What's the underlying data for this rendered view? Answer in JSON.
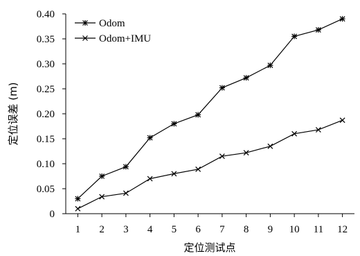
{
  "chart_data": {
    "type": "line",
    "title": "",
    "xlabel": "定位测试点",
    "ylabel": "定位误差 (m)",
    "x": [
      1,
      2,
      3,
      4,
      5,
      6,
      7,
      8,
      9,
      10,
      11,
      12
    ],
    "ylim": [
      0,
      0.4
    ],
    "yticks": [
      "0",
      "0.05",
      "0.10",
      "0.15",
      "0.20",
      "0.25",
      "0.30",
      "0.35",
      "0.40"
    ],
    "grid": false,
    "legend_position": "top-left",
    "series": [
      {
        "name": "Odom",
        "marker": "asterisk",
        "values": [
          0.03,
          0.075,
          0.094,
          0.152,
          0.18,
          0.198,
          0.252,
          0.272,
          0.297,
          0.355,
          0.368,
          0.39
        ]
      },
      {
        "name": "Odom+IMU",
        "marker": "x",
        "values": [
          0.01,
          0.034,
          0.041,
          0.07,
          0.08,
          0.089,
          0.115,
          0.122,
          0.135,
          0.16,
          0.168,
          0.187
        ]
      }
    ]
  }
}
